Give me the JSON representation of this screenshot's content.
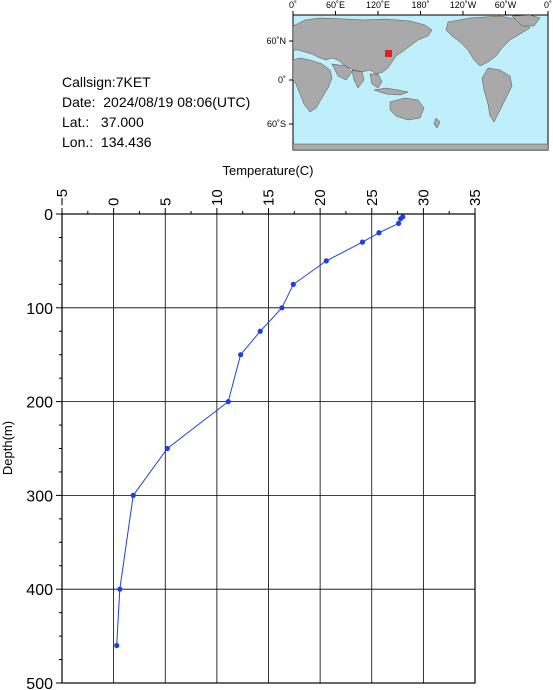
{
  "info": {
    "callsign": "Callsign:7KET",
    "date": "Date:  2024/08/19 08:06(UTC)",
    "lat": "Lat.:   37.000",
    "lon": "Lon.:  134.436"
  },
  "map": {
    "top_labels": [
      "0˚",
      "60˚E",
      "120˚E",
      "180˚",
      "120˚W",
      "60˚W",
      "0˚"
    ],
    "left_labels": [
      "60˚N",
      "0˚",
      "60˚S"
    ],
    "ocean_color": "#bfeffa",
    "land_color": "#a9a9a9",
    "marker_color": "#e02020"
  },
  "chart_data": {
    "type": "line",
    "xlabel": "Temperature(C)",
    "ylabel": "Depth(m)",
    "xlim": [
      -5,
      35
    ],
    "ylim": [
      0,
      500
    ],
    "y_inverted": true,
    "x_ticks": [
      "−5",
      "0",
      "5",
      "10",
      "15",
      "20",
      "25",
      "30",
      "35"
    ],
    "y_ticks": [
      "0",
      "100",
      "200",
      "300",
      "400",
      "500"
    ],
    "grid": true,
    "line_color": "#1f3fe0",
    "series": [
      {
        "x": [
          28.0,
          27.8,
          27.6,
          25.7,
          24.1,
          20.6,
          17.4,
          16.3,
          14.2,
          12.3,
          11.1,
          5.2,
          1.9,
          0.6,
          0.3
        ],
        "y": [
          3,
          5,
          10,
          20,
          30,
          50,
          75,
          100,
          125,
          150,
          200,
          250,
          300,
          400,
          460
        ]
      }
    ]
  }
}
